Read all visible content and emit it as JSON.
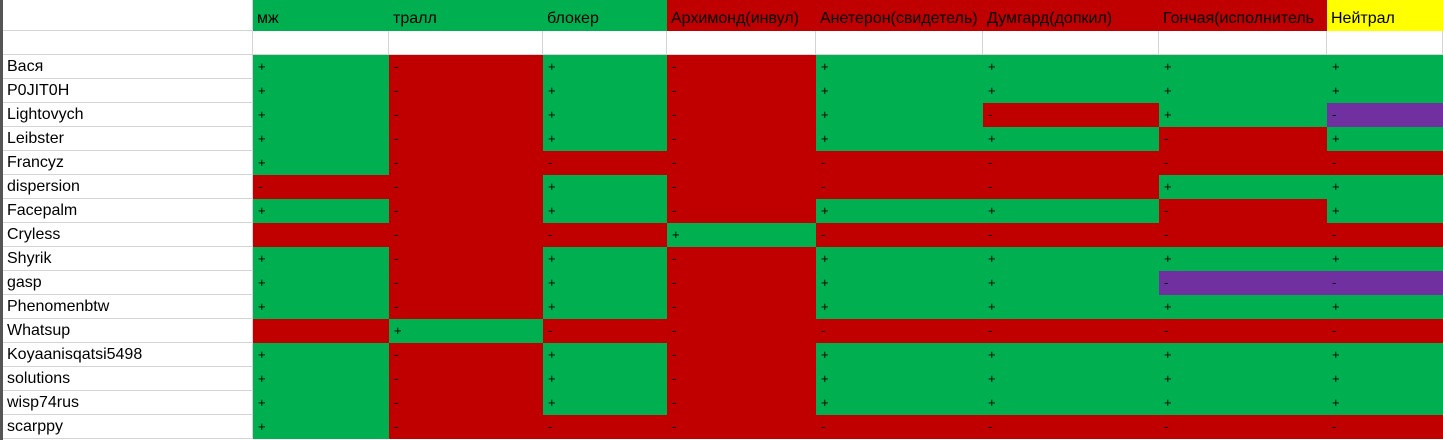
{
  "table": {
    "header": [
      null,
      "мж",
      "тралл",
      "блокер",
      "Архимонд(инвул)",
      "Анетерон(свидетель)",
      "Думгард(допкил)",
      "Гончая(исполнитель",
      "Нейтрал"
    ],
    "header_colors": [
      "#ffffff",
      "#00b050",
      "#00b050",
      "#00b050",
      "#c00000",
      "#c00000",
      "#c00000",
      "#c00000",
      "#ffff00"
    ],
    "rows": [
      {
        "name": "Вася",
        "cells": [
          "+",
          "-",
          "+",
          "-",
          "+",
          "+",
          "+",
          "+"
        ],
        "colors": [
          "#00b050",
          "#c00000",
          "#00b050",
          "#c00000",
          "#00b050",
          "#00b050",
          "#00b050",
          "#00b050"
        ]
      },
      {
        "name": "P0JIT0H",
        "cells": [
          "+",
          "-",
          "+",
          "-",
          "+",
          "+",
          "+",
          "+"
        ],
        "colors": [
          "#00b050",
          "#c00000",
          "#00b050",
          "#c00000",
          "#00b050",
          "#00b050",
          "#00b050",
          "#00b050"
        ]
      },
      {
        "name": "Lightovych",
        "cells": [
          "+",
          "-",
          "+",
          "-",
          "+",
          "-",
          "+",
          "-"
        ],
        "colors": [
          "#00b050",
          "#c00000",
          "#00b050",
          "#c00000",
          "#00b050",
          "#c00000",
          "#00b050",
          "#7030a0"
        ]
      },
      {
        "name": "Leibster",
        "cells": [
          "+",
          "-",
          "+",
          "-",
          "+",
          "+",
          "-",
          "+"
        ],
        "colors": [
          "#00b050",
          "#c00000",
          "#00b050",
          "#c00000",
          "#00b050",
          "#00b050",
          "#c00000",
          "#00b050"
        ]
      },
      {
        "name": "Francyz",
        "cells": [
          "+",
          "-",
          "-",
          "-",
          "-",
          "-",
          "-",
          "-"
        ],
        "colors": [
          "#00b050",
          "#c00000",
          "#c00000",
          "#c00000",
          "#c00000",
          "#c00000",
          "#c00000",
          "#c00000"
        ]
      },
      {
        "name": "dispersion",
        "cells": [
          "-",
          "-",
          "+",
          "-",
          "-",
          "-",
          "+",
          "+"
        ],
        "colors": [
          "#c00000",
          "#c00000",
          "#00b050",
          "#c00000",
          "#c00000",
          "#c00000",
          "#00b050",
          "#00b050"
        ]
      },
      {
        "name": "Facepalm",
        "cells": [
          "+",
          "-",
          "+",
          "-",
          "+",
          "+",
          "-",
          "+"
        ],
        "colors": [
          "#00b050",
          "#c00000",
          "#00b050",
          "#c00000",
          "#00b050",
          "#00b050",
          "#c00000",
          "#00b050"
        ]
      },
      {
        "name": "Cryless",
        "cells": [
          null,
          "-",
          "-",
          "+",
          "-",
          "-",
          "-",
          "-"
        ],
        "colors": [
          "#c00000",
          "#c00000",
          "#c00000",
          "#00b050",
          "#c00000",
          "#c00000",
          "#c00000",
          "#c00000"
        ]
      },
      {
        "name": "Shyrik",
        "cells": [
          "+",
          "-",
          "+",
          "-",
          "+",
          "+",
          "+",
          "+"
        ],
        "colors": [
          "#00b050",
          "#c00000",
          "#00b050",
          "#c00000",
          "#00b050",
          "#00b050",
          "#00b050",
          "#00b050"
        ]
      },
      {
        "name": "gasp",
        "cells": [
          "+",
          "-",
          "+",
          "-",
          "+",
          "+",
          "-",
          "-"
        ],
        "colors": [
          "#00b050",
          "#c00000",
          "#00b050",
          "#c00000",
          "#00b050",
          "#00b050",
          "#7030a0",
          "#7030a0"
        ]
      },
      {
        "name": "Phenomenbtw",
        "cells": [
          "+",
          "-",
          "+",
          "-",
          "+",
          "+",
          "+",
          "+"
        ],
        "colors": [
          "#00b050",
          "#c00000",
          "#00b050",
          "#c00000",
          "#00b050",
          "#00b050",
          "#00b050",
          "#00b050"
        ]
      },
      {
        "name": "Whatsup",
        "cells": [
          null,
          "+",
          "-",
          "-",
          "-",
          "-",
          "-",
          "-"
        ],
        "colors": [
          "#c00000",
          "#00b050",
          "#c00000",
          "#c00000",
          "#c00000",
          "#c00000",
          "#c00000",
          "#c00000"
        ]
      },
      {
        "name": "Koyaanisqatsi5498",
        "cells": [
          "+",
          "-",
          "+",
          "-",
          "+",
          "+",
          "+",
          "+"
        ],
        "colors": [
          "#00b050",
          "#c00000",
          "#00b050",
          "#c00000",
          "#00b050",
          "#00b050",
          "#00b050",
          "#00b050"
        ]
      },
      {
        "name": "solutions",
        "cells": [
          "+",
          "-",
          "+",
          "-",
          "+",
          "+",
          "+",
          "+"
        ],
        "colors": [
          "#00b050",
          "#c00000",
          "#00b050",
          "#c00000",
          "#00b050",
          "#00b050",
          "#00b050",
          "#00b050"
        ]
      },
      {
        "name": "wisp74rus",
        "cells": [
          "+",
          "-",
          "+",
          "-",
          "+",
          "+",
          "+",
          "+"
        ],
        "colors": [
          "#00b050",
          "#c00000",
          "#00b050",
          "#c00000",
          "#00b050",
          "#00b050",
          "#00b050",
          "#00b050"
        ]
      },
      {
        "name": "scarppy",
        "cells": [
          "+",
          "-",
          "-",
          "-",
          "-",
          "-",
          "-",
          "-"
        ],
        "colors": [
          "#00b050",
          "#c00000",
          "#c00000",
          "#c00000",
          "#c00000",
          "#c00000",
          "#c00000",
          "#c00000"
        ]
      }
    ]
  }
}
